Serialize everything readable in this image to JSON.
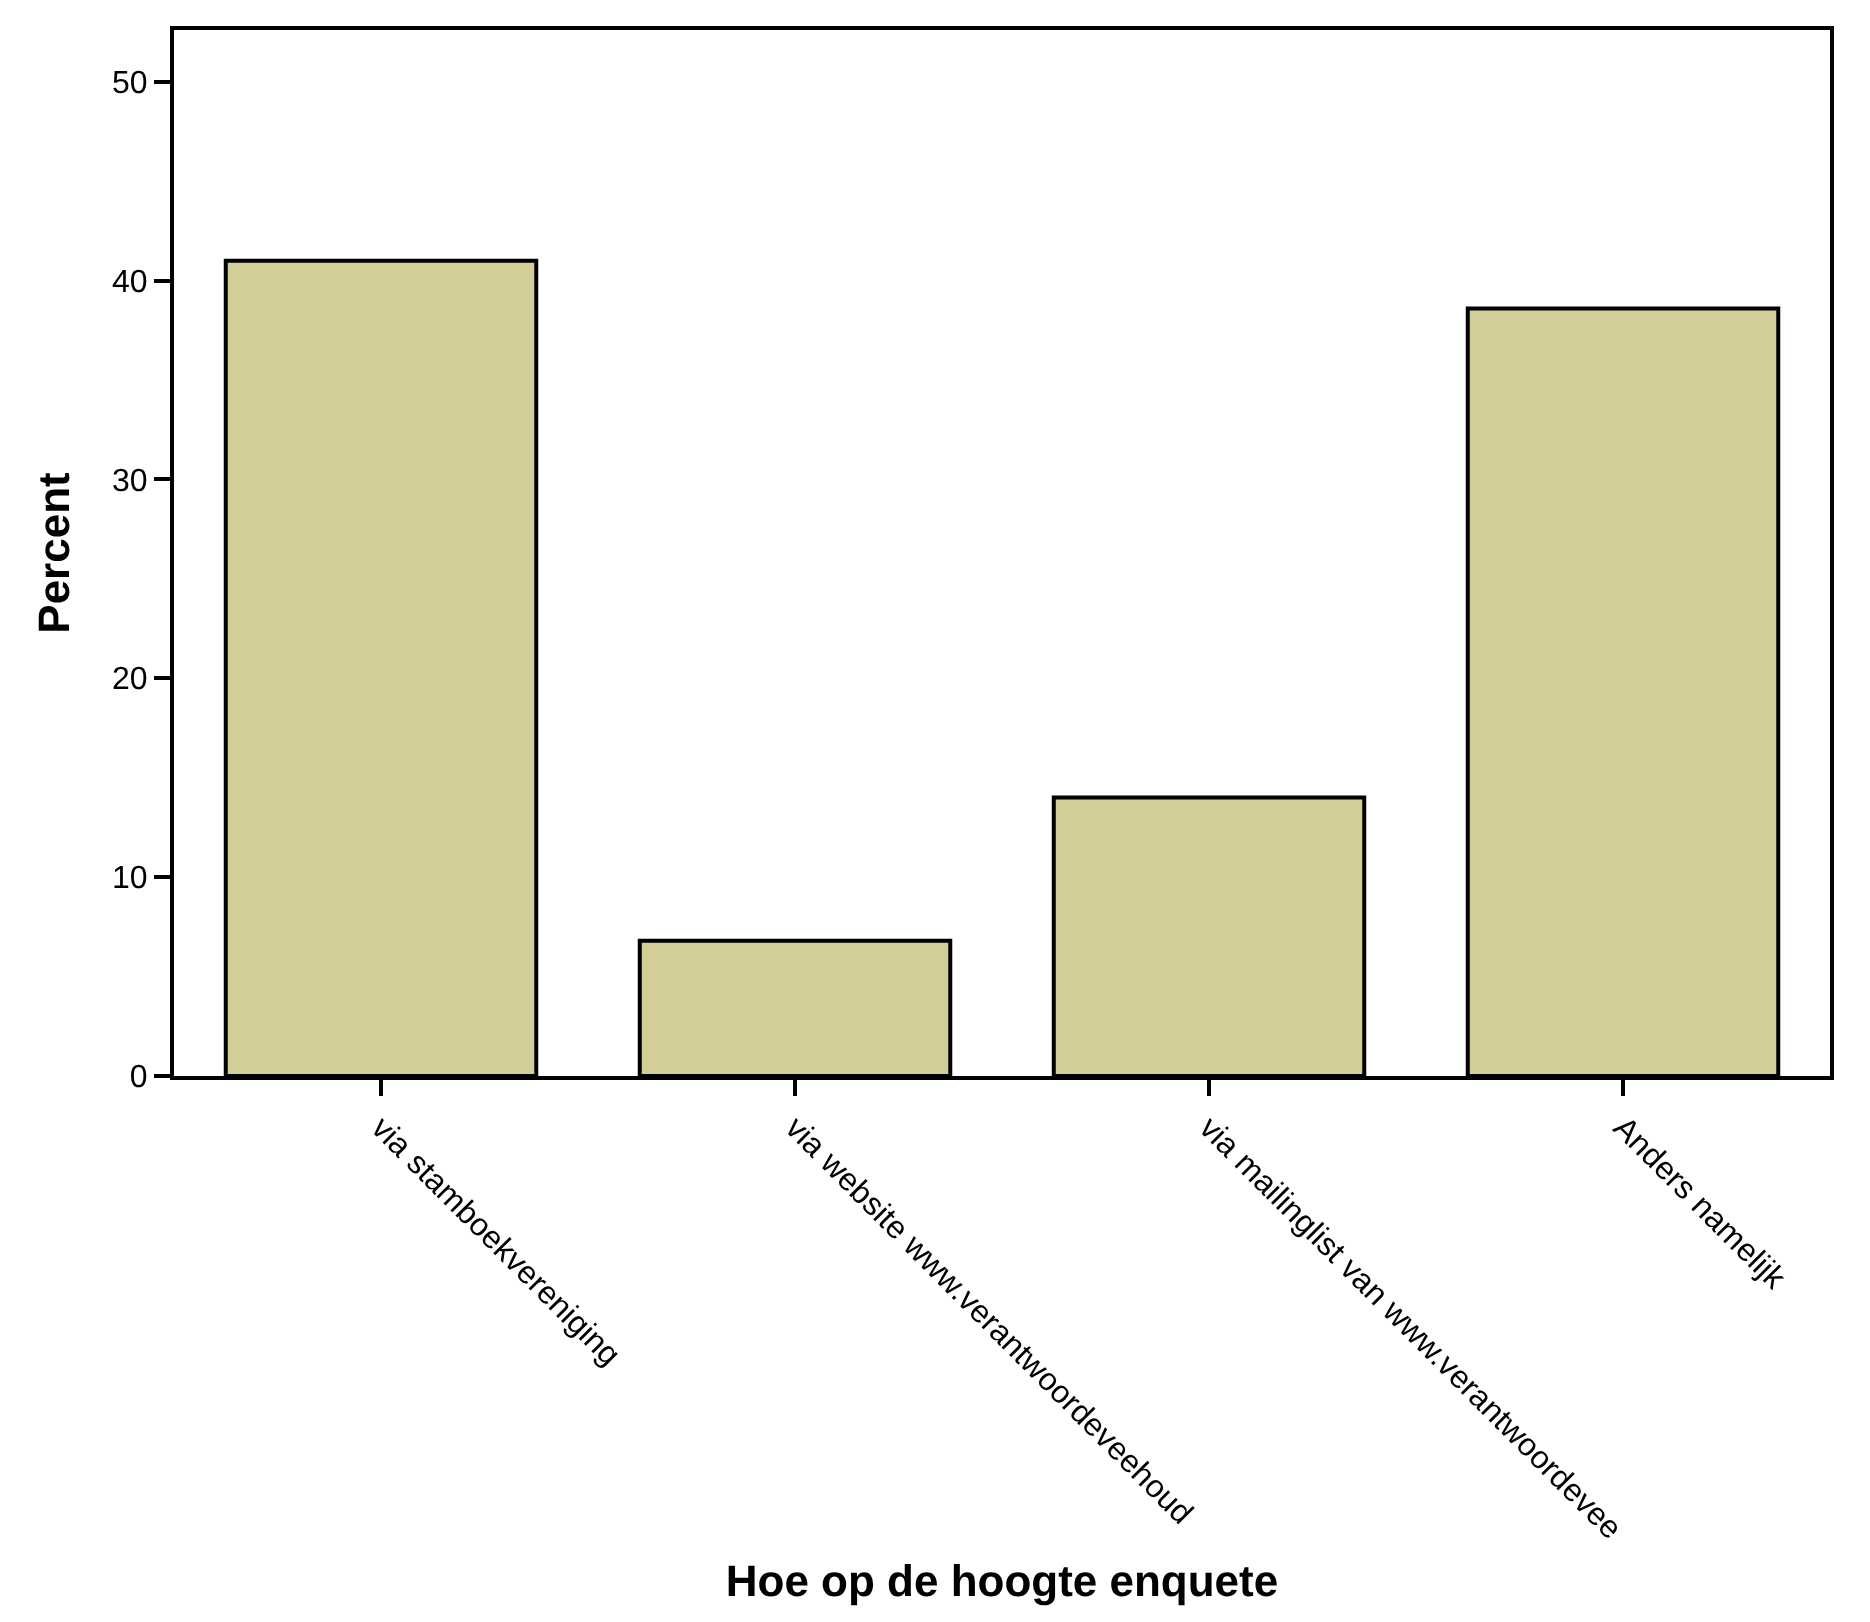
{
  "chart_data": {
    "type": "bar",
    "xlabel": "Hoe op de hoogte enquete",
    "ylabel": "Percent",
    "categories": [
      "via stamboekvereniging",
      "via website www.verantwoordeveehoud",
      "via mailinglist van www.verantwoordevee",
      "Anders namelijk"
    ],
    "values": [
      41.0,
      6.8,
      14.0,
      38.6
    ],
    "color": "#d3cd97",
    "ylim": [
      0,
      52.6
    ],
    "yticks": [
      0,
      10,
      20,
      30,
      40,
      50
    ],
    "legend": false
  }
}
